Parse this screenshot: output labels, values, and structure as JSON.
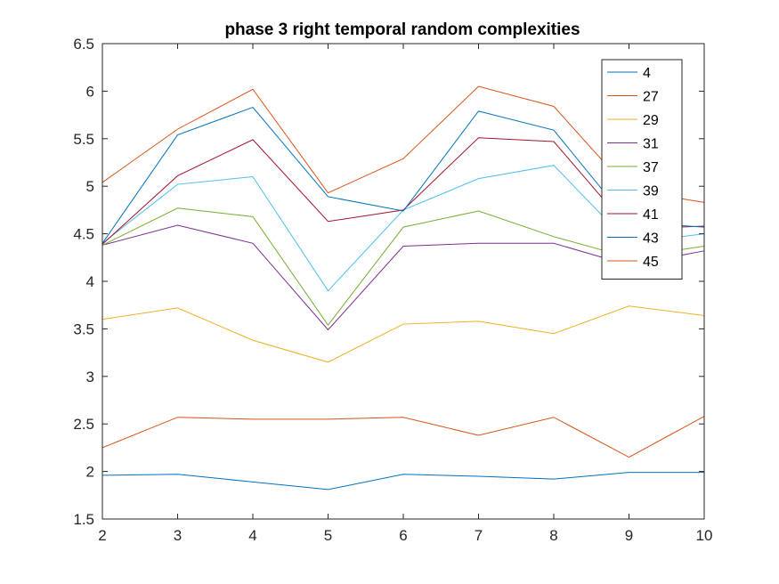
{
  "chart_data": {
    "type": "line",
    "title": "phase 3 right temporal random complexities",
    "xlabel": "",
    "ylabel": "",
    "x": [
      2,
      3,
      4,
      5,
      6,
      7,
      8,
      9,
      10
    ],
    "xlim": [
      2,
      10
    ],
    "ylim": [
      1.5,
      6.5
    ],
    "xticks": [
      "2",
      "3",
      "4",
      "5",
      "6",
      "7",
      "8",
      "9",
      "10"
    ],
    "yticks": [
      "1.5",
      "2",
      "2.5",
      "3",
      "3.5",
      "4",
      "4.5",
      "5",
      "5.5",
      "6",
      "6.5"
    ],
    "grid": false,
    "legend_position": "top-right",
    "series": [
      {
        "name": "4",
        "color": "#0072BD",
        "values": [
          1.96,
          1.97,
          1.89,
          1.81,
          1.97,
          1.95,
          1.92,
          1.99,
          1.99
        ]
      },
      {
        "name": "27",
        "color": "#D95319",
        "values": [
          2.25,
          2.57,
          2.55,
          2.55,
          2.57,
          2.38,
          2.57,
          2.15,
          2.58
        ]
      },
      {
        "name": "29",
        "color": "#EDB120",
        "values": [
          3.6,
          3.72,
          3.38,
          3.15,
          3.55,
          3.58,
          3.45,
          3.74,
          3.64
        ]
      },
      {
        "name": "31",
        "color": "#7E2F8E",
        "values": [
          4.38,
          4.59,
          4.4,
          3.49,
          4.37,
          4.4,
          4.4,
          4.17,
          4.32
        ]
      },
      {
        "name": "37",
        "color": "#77AC30",
        "values": [
          4.38,
          4.77,
          4.68,
          3.54,
          4.57,
          4.74,
          4.47,
          4.25,
          4.37
        ]
      },
      {
        "name": "39",
        "color": "#4DBEEE",
        "values": [
          4.4,
          5.02,
          5.1,
          3.9,
          4.75,
          5.08,
          5.22,
          4.4,
          4.5
        ]
      },
      {
        "name": "41",
        "color": "#A2142F",
        "values": [
          4.39,
          5.11,
          5.49,
          4.63,
          4.75,
          5.51,
          5.47,
          4.55,
          4.58
        ]
      },
      {
        "name": "43",
        "color": "#0072BD",
        "values": [
          4.4,
          5.54,
          5.83,
          4.89,
          4.74,
          5.79,
          5.59,
          4.62,
          4.57
        ]
      },
      {
        "name": "45",
        "color": "#D95319",
        "values": [
          5.04,
          5.6,
          6.02,
          4.93,
          5.29,
          6.05,
          5.84,
          4.96,
          4.83
        ]
      }
    ]
  }
}
